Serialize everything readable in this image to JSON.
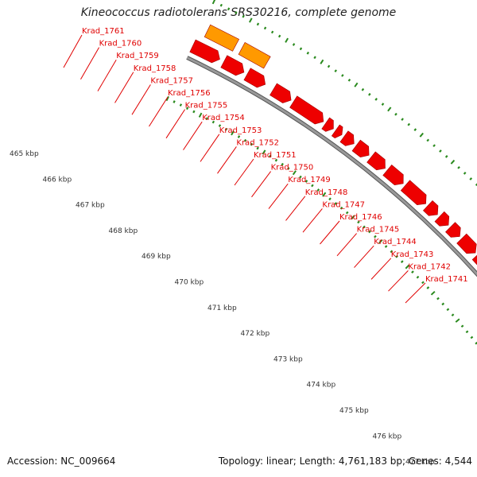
{
  "title": "Kineococcus radiotolerans SRS30216, complete genome",
  "footer": {
    "accession": "Accession: NC_009664",
    "stats": "Topology: linear; Length: 4,761,183 bp; Genes: 4,544"
  },
  "colors": {
    "gene": "#ee0000",
    "gene_highlight": "#ff9900",
    "backbone": "#999999",
    "tick": "#2a8a1e",
    "label": "#e00000"
  },
  "gene_labels": [
    "Krad_1761",
    "Krad_1760",
    "Krad_1759",
    "Krad_1758",
    "Krad_1757",
    "Krad_1756",
    "Krad_1755",
    "Krad_1754",
    "Krad_1753",
    "Krad_1752",
    "Krad_1751",
    "Krad_1750",
    "Krad_1749",
    "Krad_1748",
    "Krad_1747",
    "Krad_1746",
    "Krad_1745",
    "Krad_1744",
    "Krad_1743",
    "Krad_1742",
    "Krad_1741"
  ],
  "kbp_labels": [
    "465 kbp",
    "466 kbp",
    "467 kbp",
    "468 kbp",
    "469 kbp",
    "470 kbp",
    "471 kbp",
    "472 kbp",
    "473 kbp",
    "474 kbp",
    "475 kbp",
    "476 kbp",
    "477 kbp"
  ]
}
